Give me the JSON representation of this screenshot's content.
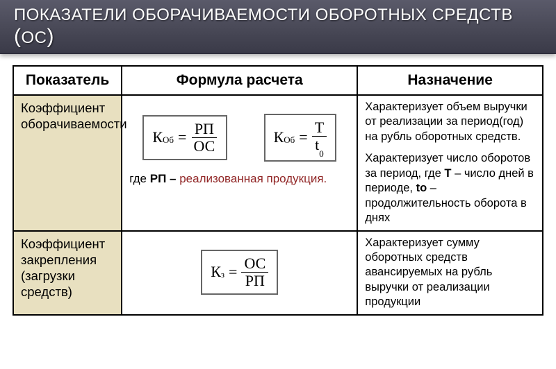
{
  "title": {
    "main": "ПОКАЗАТЕЛИ ОБОРАЧИВАЕМОСТИ ОБОРОТНЫХ СРЕДСТВ ",
    "paren_open": "(",
    "abbr": "ОС",
    "paren_close": ")"
  },
  "headers": {
    "col1": "Показатель",
    "col2": "Формула расчета",
    "col3": "Назначение"
  },
  "row1": {
    "label": "Коэффициент оборачиваемости",
    "formula1": {
      "k": "К",
      "sub": "Об",
      "num": "РП",
      "den": "ОС"
    },
    "formula2": {
      "k": "К",
      "sub": "Об",
      "num": "Т",
      "den_t": "t",
      "den_sub": "0"
    },
    "note_prefix": "где ",
    "note_bold": "РП – ",
    "note_rest": "реализованная продукция.",
    "purpose_p1": "Характеризует объем выручки от реализации за период(год) на рубль оборотных средств.",
    "purpose_p2a": "Характеризует число оборотов за период, где ",
    "purpose_T": "Т",
    "purpose_p2b": " – число дней в периоде, ",
    "purpose_to": "to",
    "purpose_p2c": " – продолжительность оборота в днях"
  },
  "row2": {
    "label": "Коэффициент закрепления (загрузки средств)",
    "formula": {
      "k": "К",
      "sub": "з",
      "num": "ОС",
      "den": "РП"
    },
    "purpose": "Характеризует сумму оборотных средств авансируемых на рубль выручки от реализации продукции"
  }
}
